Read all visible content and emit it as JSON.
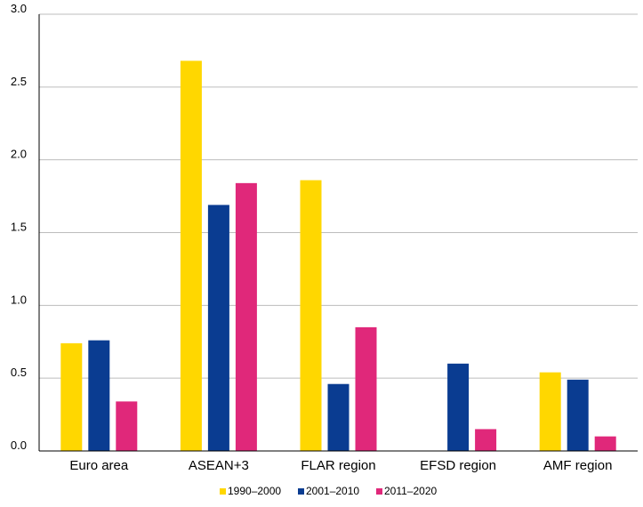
{
  "chart_data": {
    "type": "bar",
    "categories": [
      "Euro area",
      "ASEAN+3",
      "FLAR region",
      "EFSD region",
      "AMF region"
    ],
    "series": [
      {
        "name": "1990–2000",
        "color": "#FFD700",
        "values": [
          0.74,
          2.68,
          1.86,
          null,
          0.54
        ]
      },
      {
        "name": "2001–2010",
        "color": "#0A3C91",
        "values": [
          0.76,
          1.69,
          0.46,
          0.6,
          0.49
        ]
      },
      {
        "name": "2011–2020",
        "color": "#E0287A",
        "values": [
          0.34,
          1.84,
          0.85,
          0.15,
          0.1
        ]
      }
    ],
    "y_ticks": [
      "0.0",
      "0.5",
      "1.0",
      "1.5",
      "2.0",
      "2.5",
      "3.0"
    ],
    "ylim": [
      0,
      3.0
    ],
    "grid": true,
    "legend_position": "bottom-center",
    "title": "",
    "xlabel": "",
    "ylabel": ""
  }
}
